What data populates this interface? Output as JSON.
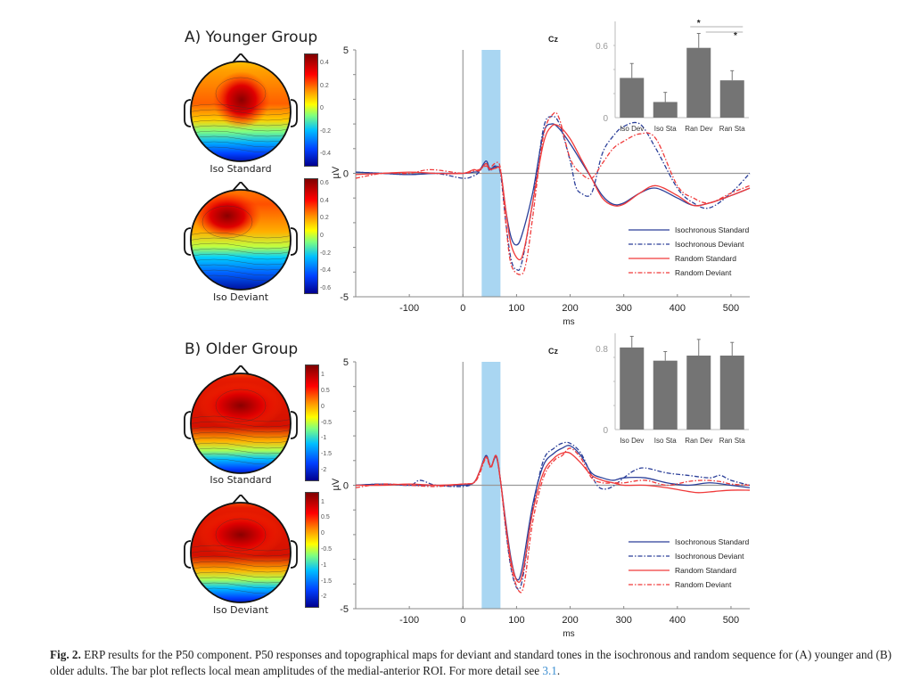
{
  "figure": {
    "panels": [
      {
        "id": "A",
        "title": "A)  Younger Group",
        "topomaps": [
          {
            "label": "Iso Standard",
            "colorbar_ticks": [
              "0.4",
              "0.2",
              "0",
              "-0.2",
              "-0.4"
            ],
            "colorbar_range": [
              -0.5,
              0.48
            ],
            "pattern": "central-peak"
          },
          {
            "label": "Iso Deviant",
            "colorbar_ticks": [
              "0.6",
              "0.4",
              "0.2",
              "0",
              "-0.2",
              "-0.4",
              "-0.6"
            ],
            "colorbar_range": [
              -0.65,
              0.65
            ],
            "pattern": "left-frontal-peak"
          }
        ],
        "electrode": "Cz"
      },
      {
        "id": "B",
        "title": "B)  Older Group",
        "topomaps": [
          {
            "label": "Iso Standard",
            "colorbar_ticks": [
              "1",
              "0.5",
              "0",
              "-0.5",
              "-1",
              "-1.5",
              "-2"
            ],
            "colorbar_range": [
              -2.3,
              1.3
            ],
            "pattern": "broad-frontal"
          },
          {
            "label": "Iso Deviant",
            "colorbar_ticks": [
              "1",
              "0.5",
              "0",
              "-0.5",
              "-1",
              "-1.5",
              "-2"
            ],
            "colorbar_range": [
              -2.3,
              1.3
            ],
            "pattern": "broad-frontal"
          }
        ],
        "electrode": "Cz"
      }
    ],
    "caption": {
      "label": "Fig. 2.",
      "text": " ERP results for the P50 component. P50 responses and topographical maps for deviant and standard tones in the isochronous and random sequence for (A) younger and (B) older adults. The bar plot reflects local mean amplitudes of the medial-anterior ROI. For more detail see ",
      "link": "3.1",
      "end": "."
    },
    "colors": {
      "iso": "#2b3f99",
      "random": "#f03a3a",
      "highlight": "#a9d6f2",
      "bar": "#747474",
      "axis": "#888888"
    }
  },
  "chart_data": [
    {
      "type": "line",
      "title": "Cz",
      "panel": "A",
      "xlabel": "ms",
      "ylabel": "µV",
      "xlim": [
        -200,
        535
      ],
      "ylim": [
        -5,
        5
      ],
      "xticks": [
        -100,
        0,
        100,
        200,
        300,
        400,
        500
      ],
      "yticks_labeled": [
        5,
        0,
        -5
      ],
      "highlight_window_ms": [
        35,
        70
      ],
      "legend": {
        "position": "bottom-right",
        "entries": [
          "Isochronous Standard",
          "Isochronous Deviant",
          "Random Standard",
          "Random Deviant"
        ]
      },
      "series": [
        {
          "name": "Isochronous Standard",
          "style": "solid",
          "color": "iso",
          "x": [
            -200,
            -150,
            -100,
            -50,
            0,
            20,
            30,
            43,
            50,
            60,
            70,
            80,
            90,
            100,
            110,
            130,
            150,
            165,
            180,
            200,
            220,
            240,
            260,
            280,
            300,
            330,
            360,
            400,
            430,
            460,
            500,
            535
          ],
          "y": [
            0.05,
            0,
            -0.05,
            0,
            0,
            0.05,
            0.1,
            0.5,
            0.2,
            0.25,
            0.1,
            -1.5,
            -2.6,
            -2.9,
            -2.5,
            -0.8,
            1.6,
            2.0,
            1.8,
            1.2,
            0.5,
            -0.2,
            -0.9,
            -1.25,
            -1.2,
            -0.8,
            -0.6,
            -1.0,
            -1.3,
            -1.2,
            -0.9,
            -0.6
          ]
        },
        {
          "name": "Isochronous Deviant",
          "style": "dashdot",
          "color": "iso",
          "x": [
            -200,
            -150,
            -100,
            -50,
            0,
            20,
            30,
            43,
            50,
            60,
            70,
            80,
            90,
            100,
            110,
            130,
            150,
            165,
            180,
            200,
            210,
            220,
            240,
            260,
            280,
            300,
            330,
            360,
            400,
            430,
            460,
            500,
            535
          ],
          "y": [
            0.05,
            0,
            -0.05,
            0,
            -0.2,
            -0.1,
            0.05,
            0.4,
            0.1,
            0.3,
            0.0,
            -2.0,
            -3.5,
            -3.9,
            -3.6,
            -1.2,
            1.8,
            2.3,
            2.0,
            0.5,
            -0.5,
            -0.8,
            -0.8,
            0.8,
            1.5,
            1.9,
            2.0,
            1.0,
            -0.6,
            -1.2,
            -1.4,
            -0.8,
            0.0
          ]
        },
        {
          "name": "Random Standard",
          "style": "solid",
          "color": "random",
          "x": [
            -200,
            -150,
            -100,
            -50,
            0,
            20,
            30,
            43,
            50,
            60,
            70,
            80,
            90,
            105,
            115,
            130,
            150,
            165,
            180,
            200,
            220,
            240,
            260,
            280,
            300,
            330,
            360,
            400,
            430,
            460,
            500,
            535
          ],
          "y": [
            -0.05,
            0,
            0.05,
            0,
            0,
            0.15,
            0.1,
            0.4,
            0.15,
            0.2,
            0.1,
            -1.5,
            -2.9,
            -3.5,
            -3.0,
            -1.2,
            1.2,
            1.9,
            1.9,
            1.4,
            0.6,
            -0.2,
            -1.0,
            -1.3,
            -1.25,
            -0.8,
            -0.5,
            -0.9,
            -1.3,
            -1.2,
            -0.9,
            -0.6
          ]
        },
        {
          "name": "Random Deviant",
          "style": "dashdot",
          "color": "random",
          "x": [
            -200,
            -150,
            -100,
            -60,
            0,
            20,
            30,
            43,
            50,
            60,
            70,
            80,
            90,
            108,
            118,
            130,
            150,
            168,
            180,
            200,
            220,
            240,
            260,
            280,
            300,
            330,
            360,
            400,
            430,
            460,
            500,
            535
          ],
          "y": [
            -0.2,
            0,
            0,
            0.15,
            0,
            0.1,
            0.15,
            0.3,
            0.2,
            0.4,
            0.2,
            -2.0,
            -3.7,
            -4.1,
            -3.6,
            -1.8,
            1.5,
            2.4,
            2.2,
            0.6,
            0.0,
            -0.2,
            0.4,
            1.0,
            1.3,
            1.6,
            1.4,
            -0.5,
            -1.0,
            -1.2,
            -0.8,
            -0.5
          ]
        }
      ]
    },
    {
      "type": "bar",
      "panel": "A",
      "title": "",
      "categories": [
        "Iso Dev",
        "Iso Sta",
        "Ran Dev",
        "Ran Sta"
      ],
      "values": [
        0.33,
        0.13,
        0.58,
        0.31
      ],
      "errors": [
        0.12,
        0.08,
        0.12,
        0.08
      ],
      "yticks": [
        0,
        0.6
      ],
      "ylim": [
        0,
        0.8
      ],
      "significance": [
        {
          "from": "Ran Dev",
          "to": "Ran Sta",
          "label": "*"
        },
        {
          "from": "Iso Sta",
          "to": "Ran Sta",
          "label": "*"
        }
      ]
    },
    {
      "type": "line",
      "title": "Cz",
      "panel": "B",
      "xlabel": "ms",
      "ylabel": "µV",
      "xlim": [
        -200,
        535
      ],
      "ylim": [
        -5,
        5
      ],
      "xticks": [
        -100,
        0,
        100,
        200,
        300,
        400,
        500
      ],
      "yticks_labeled": [
        5,
        0,
        -5
      ],
      "highlight_window_ms": [
        35,
        70
      ],
      "legend": {
        "position": "bottom-right",
        "entries": [
          "Isochronous Standard",
          "Isochronous Deviant",
          "Random Standard",
          "Random Deviant"
        ]
      },
      "series": [
        {
          "name": "Isochronous Standard",
          "style": "solid",
          "color": "iso",
          "x": [
            -200,
            -150,
            -100,
            -50,
            0,
            20,
            30,
            43,
            52,
            62,
            70,
            80,
            90,
            100,
            110,
            130,
            150,
            170,
            185,
            200,
            220,
            240,
            260,
            280,
            300,
            340,
            380,
            420,
            460,
            500,
            535
          ],
          "y": [
            0,
            0.05,
            0,
            0,
            0,
            0.1,
            0.5,
            1.2,
            0.75,
            1.15,
            0.2,
            -1.5,
            -3.0,
            -3.8,
            -3.4,
            -0.8,
            0.8,
            1.3,
            1.5,
            1.6,
            1.2,
            0.5,
            0.3,
            0.2,
            0.3,
            0.3,
            0.1,
            0.0,
            0.1,
            0.0,
            -0.1
          ]
        },
        {
          "name": "Isochronous Deviant",
          "style": "dashdot",
          "color": "iso",
          "x": [
            -200,
            -150,
            -100,
            -80,
            -50,
            0,
            20,
            30,
            43,
            52,
            62,
            70,
            80,
            90,
            102,
            112,
            130,
            150,
            170,
            185,
            200,
            220,
            240,
            255,
            275,
            300,
            320,
            340,
            380,
            420,
            460,
            480,
            500,
            535
          ],
          "y": [
            0,
            0.05,
            0,
            0.2,
            0,
            -0.05,
            0.1,
            0.5,
            1.2,
            0.75,
            1.2,
            0.2,
            -1.8,
            -3.4,
            -4.2,
            -3.7,
            -1.0,
            1.0,
            1.5,
            1.7,
            1.7,
            1.3,
            0.4,
            -0.1,
            -0.1,
            0.3,
            0.6,
            0.7,
            0.5,
            0.4,
            0.3,
            0.4,
            0.2,
            0.0
          ]
        },
        {
          "name": "Random Standard",
          "style": "solid",
          "color": "random",
          "x": [
            -200,
            -150,
            -100,
            -50,
            0,
            20,
            30,
            43,
            52,
            62,
            70,
            80,
            90,
            102,
            112,
            130,
            150,
            170,
            185,
            200,
            220,
            240,
            260,
            280,
            300,
            340,
            380,
            420,
            440,
            470,
            500,
            535
          ],
          "y": [
            0,
            0,
            0.05,
            0,
            0.05,
            0.1,
            0.5,
            1.15,
            0.75,
            1.2,
            0.2,
            -1.6,
            -3.1,
            -3.9,
            -3.5,
            -1.1,
            0.5,
            1.1,
            1.3,
            1.3,
            0.9,
            0.4,
            0.2,
            0.1,
            0.0,
            0.0,
            -0.1,
            -0.25,
            -0.3,
            -0.25,
            -0.2,
            -0.2
          ]
        },
        {
          "name": "Random Deviant",
          "style": "dashdot",
          "color": "random",
          "x": [
            -200,
            -150,
            -100,
            -50,
            0,
            20,
            30,
            43,
            52,
            62,
            70,
            80,
            90,
            105,
            115,
            130,
            150,
            170,
            185,
            200,
            220,
            240,
            260,
            280,
            300,
            340,
            380,
            420,
            450,
            480,
            500,
            535
          ],
          "y": [
            -0.1,
            0.05,
            0,
            -0.05,
            0.05,
            0.1,
            0.4,
            1.1,
            0.7,
            1.2,
            0.2,
            -1.7,
            -3.3,
            -4.3,
            -3.9,
            -1.5,
            0.3,
            1.0,
            1.2,
            1.5,
            1.1,
            0.3,
            0.1,
            0.1,
            0.1,
            0.2,
            0.0,
            0.15,
            0.2,
            0.15,
            0.05,
            0.0
          ]
        }
      ]
    },
    {
      "type": "bar",
      "panel": "B",
      "title": "",
      "categories": [
        "Iso Dev",
        "Iso Sta",
        "Ran Dev",
        "Ran Sta"
      ],
      "values": [
        0.81,
        0.68,
        0.73,
        0.73
      ],
      "errors": [
        0.11,
        0.09,
        0.16,
        0.13
      ],
      "yticks": [
        0,
        0.8
      ],
      "ylim": [
        0,
        0.95
      ],
      "significance": []
    }
  ]
}
